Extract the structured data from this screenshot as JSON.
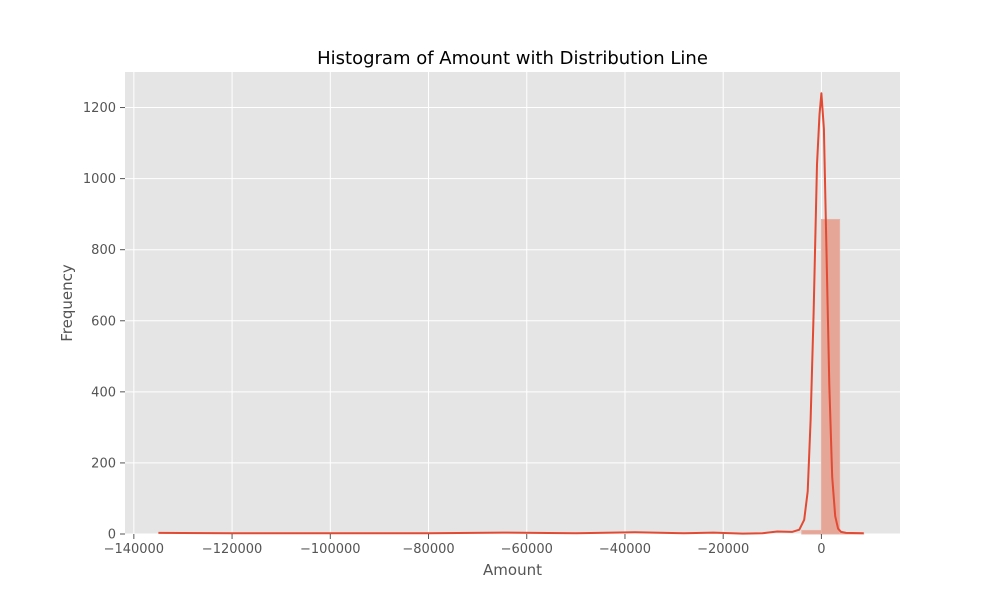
{
  "chart_data": {
    "type": "bar",
    "title": "Histogram of Amount with Distribution Line",
    "xlabel": "Amount",
    "ylabel": "Frequency",
    "xlim": [
      -141800,
      16000
    ],
    "ylim": [
      0,
      1300
    ],
    "xticks": [
      -140000,
      -120000,
      -100000,
      -80000,
      -60000,
      -40000,
      -20000,
      0
    ],
    "xtick_labels": [
      "−140000",
      "−120000",
      "−100000",
      "−80000",
      "−60000",
      "−40000",
      "−20000",
      "0"
    ],
    "yticks": [
      0,
      200,
      400,
      600,
      800,
      1000,
      1200
    ],
    "ytick_labels": [
      "0",
      "200",
      "400",
      "600",
      "800",
      "1000",
      "1200"
    ],
    "grid": true,
    "bins": [
      {
        "x0": -4000,
        "x1": 0,
        "count": 10
      },
      {
        "x0": 0,
        "x1": 3700,
        "count": 885
      },
      {
        "x0": 3700,
        "x1": 8600,
        "count": 3
      }
    ],
    "kde_line": {
      "x": [
        -135000,
        -120000,
        -100000,
        -80000,
        -65000,
        -50000,
        -38000,
        -28000,
        -22000,
        -16000,
        -12000,
        -9000,
        -6000,
        -4500,
        -3500,
        -2800,
        -2200,
        -1600,
        -900,
        -400,
        0,
        500,
        1000,
        1600,
        2200,
        2800,
        3400,
        4000,
        5000,
        8600
      ],
      "y": [
        3,
        2,
        2,
        2,
        4,
        2,
        5,
        2,
        4,
        1,
        2,
        7,
        6,
        12,
        40,
        120,
        320,
        620,
        1040,
        1180,
        1240,
        1140,
        820,
        420,
        160,
        50,
        15,
        6,
        3,
        2
      ]
    },
    "colors": {
      "bar_fill": "#e5a597",
      "bar_edge": "#e8b0a3",
      "line": "#e24a33",
      "plot_bg": "#e5e5e5",
      "grid": "#ffffff"
    }
  }
}
